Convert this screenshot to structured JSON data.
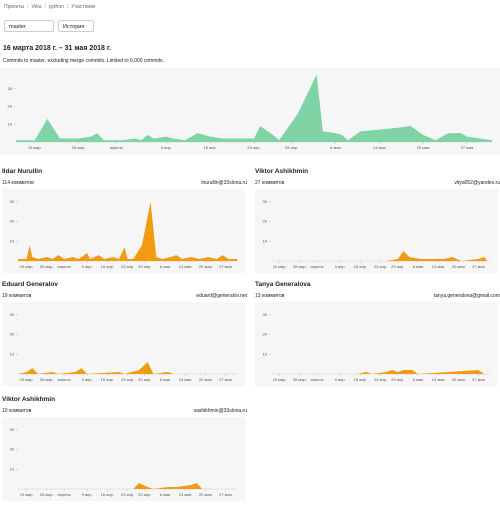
{
  "breadcrumbs": [
    "Проекты",
    "Veta",
    "python",
    "Участники"
  ],
  "branch": "master",
  "history_button": "История",
  "title": "16 марта 2018 г. – 31 мая 2018 г.",
  "subtitle": "Commits to master, excluding merge commits. Limited to 6,000 commits.",
  "xlim": [
    0,
    76
  ],
  "xticks": [
    {
      "value": 3,
      "label": "19 мар."
    },
    {
      "value": 10,
      "label": "26 мар."
    },
    {
      "value": 16,
      "label": "апрель"
    },
    {
      "value": 24,
      "label": "9 апр."
    },
    {
      "value": 31,
      "label": "16 апр."
    },
    {
      "value": 38,
      "label": "23 апр."
    },
    {
      "value": 44,
      "label": "29 апр."
    },
    {
      "value": 51,
      "label": "6 мая"
    },
    {
      "value": 58,
      "label": "13 мая"
    },
    {
      "value": 65,
      "label": "20 мая"
    },
    {
      "value": 72,
      "label": "27 мая"
    }
  ],
  "main_chart": {
    "type": "area",
    "color": "#7fd3a4",
    "ylim": [
      0,
      40
    ],
    "yticks": [
      10,
      20,
      30
    ],
    "x": [
      0,
      3,
      5,
      7,
      10,
      12,
      13,
      14,
      17,
      19,
      20,
      21,
      22,
      24,
      25,
      27,
      29,
      31,
      33,
      35,
      37,
      38,
      39,
      41,
      42,
      43,
      45,
      48,
      49,
      51,
      52,
      53,
      55,
      58,
      61,
      63,
      65,
      67,
      68,
      69,
      71,
      72,
      74,
      76
    ],
    "values": [
      1,
      1,
      13,
      2,
      2,
      3,
      5,
      1,
      1,
      2,
      1,
      4,
      2,
      3,
      2,
      1,
      5,
      3,
      2,
      2,
      2,
      2,
      9,
      4,
      1,
      6,
      16,
      38,
      6,
      5,
      4,
      1,
      6,
      7,
      8,
      9,
      4,
      1,
      3,
      5,
      5,
      3,
      2,
      1
    ]
  },
  "contributors": [
    {
      "name": "Ildar Nurullin",
      "commits": "114 коммитов",
      "email": "inurullin@33slona.ru",
      "chart": {
        "type": "area",
        "color": "#f29b12",
        "ylim": [
          0,
          35
        ],
        "yticks": [
          10,
          20,
          30
        ],
        "x": [
          0,
          3,
          4,
          5,
          7,
          10,
          12,
          14,
          16,
          19,
          21,
          24,
          25,
          28,
          30,
          33,
          35,
          37,
          38,
          40,
          43,
          46,
          48,
          50,
          53,
          55,
          57,
          60,
          63,
          66,
          69,
          71,
          73,
          76
        ],
        "values": [
          1,
          1,
          8,
          2,
          1,
          2,
          1,
          3,
          1,
          2,
          1,
          4,
          1,
          3,
          1,
          2,
          1,
          7,
          1,
          1,
          8,
          30,
          2,
          1,
          2,
          3,
          1,
          2,
          1,
          2,
          1,
          3,
          1,
          1
        ]
      }
    },
    {
      "name": "Viktor Ashikhmin",
      "commits": "27 коммитов",
      "email": "vitya052@yandex.ru",
      "chart": {
        "type": "area",
        "color": "#f29b12",
        "ylim": [
          0,
          35
        ],
        "yticks": [
          10,
          20,
          30
        ],
        "x": [
          0,
          40,
          44,
          46,
          48,
          52,
          60,
          63,
          66,
          72,
          74,
          75,
          76
        ],
        "values": [
          0,
          0,
          1,
          5,
          2,
          1,
          1,
          2,
          0,
          1,
          2,
          0,
          0
        ]
      }
    },
    {
      "name": "Eduard Generalov",
      "commits": "19 коммитов",
      "email": "eduard@generalov.net",
      "chart": {
        "type": "area",
        "color": "#f29b12",
        "ylim": [
          0,
          35
        ],
        "yticks": [
          10,
          20,
          30
        ],
        "x": [
          0,
          3,
          5,
          7,
          12,
          14,
          20,
          22,
          24,
          35,
          37,
          42,
          45,
          47,
          52,
          54,
          76
        ],
        "values": [
          0,
          1,
          3,
          0,
          1,
          0,
          1,
          3,
          0,
          1,
          0,
          2,
          6,
          0,
          1,
          0,
          0
        ]
      }
    },
    {
      "name": "Tanya Generalova",
      "commits": "13 коммитов",
      "email": "tanya.generalova@gmail.com",
      "chart": {
        "type": "area",
        "color": "#f29b12",
        "ylim": [
          0,
          35
        ],
        "yticks": [
          10,
          20,
          30
        ],
        "x": [
          0,
          30,
          33,
          35,
          40,
          42,
          44,
          46,
          49,
          51,
          72,
          74,
          76
        ],
        "values": [
          0,
          0,
          1,
          0,
          1,
          2,
          1,
          2,
          2,
          0,
          2,
          0,
          0
        ]
      }
    },
    {
      "name": "Viktor Ashikhmin",
      "commits": "10 коммитов",
      "email": "vashikhmin@33slona.ru",
      "chart": {
        "type": "area",
        "color": "#f29b12",
        "ylim": [
          0,
          35
        ],
        "yticks": [
          10,
          20,
          30
        ],
        "x": [
          0,
          40,
          42,
          45,
          47,
          52,
          55,
          60,
          62,
          64,
          76
        ],
        "values": [
          0,
          0,
          3,
          1,
          0,
          1,
          1,
          2,
          3,
          0,
          0
        ]
      }
    }
  ]
}
